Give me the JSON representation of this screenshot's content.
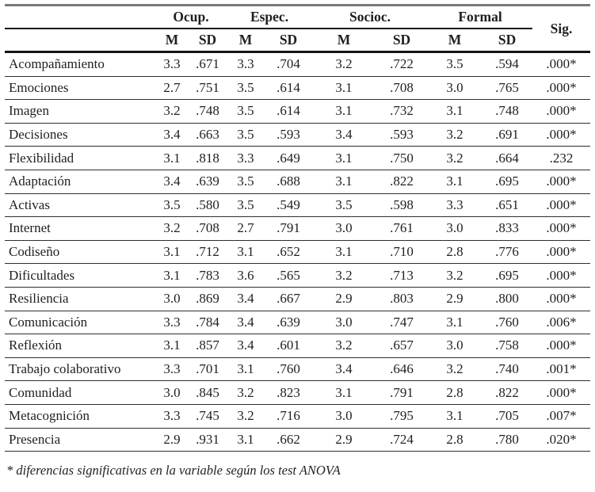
{
  "page": {
    "footnote": "* diferencias significativas en la variable según los test ANOVA"
  },
  "colors": {
    "text": "#1f1f1f",
    "rule_dark": "#161616",
    "rule_row": "#2e2e2e",
    "rule_top_gray": "#7a7a7a",
    "background": "#ffffff"
  },
  "table": {
    "groups": [
      {
        "key": "ocup",
        "label": "Ocup."
      },
      {
        "key": "espec",
        "label": "Espec."
      },
      {
        "key": "socioc",
        "label": "Socioc."
      },
      {
        "key": "formal",
        "label": "Formal"
      }
    ],
    "subheaders": [
      "M",
      "SD"
    ],
    "sig_label": "Sig.",
    "rows": [
      {
        "label": "Acompañamiento",
        "values": [
          "3.3",
          ".671",
          "3.3",
          ".704",
          "3.2",
          ".722",
          "3.5",
          ".594"
        ],
        "sig": ".000*"
      },
      {
        "label": "Emociones",
        "values": [
          "2.7",
          ".751",
          "3.5",
          ".614",
          "3.1",
          ".708",
          "3.0",
          ".765"
        ],
        "sig": ".000*"
      },
      {
        "label": "Imagen",
        "values": [
          "3.2",
          ".748",
          "3.5",
          ".614",
          "3.1",
          ".732",
          "3.1",
          ".748"
        ],
        "sig": ".000*"
      },
      {
        "label": "Decisiones",
        "values": [
          "3.4",
          ".663",
          "3.5",
          ".593",
          "3.4",
          ".593",
          "3.2",
          ".691"
        ],
        "sig": ".000*"
      },
      {
        "label": "Flexibilidad",
        "values": [
          "3.1",
          ".818",
          "3.3",
          ".649",
          "3.1",
          ".750",
          "3.2",
          ".664"
        ],
        "sig": ".232"
      },
      {
        "label": "Adaptación",
        "values": [
          "3.4",
          ".639",
          "3.5",
          ".688",
          "3.1",
          ".822",
          "3.1",
          ".695"
        ],
        "sig": ".000*"
      },
      {
        "label": "Activas",
        "values": [
          "3.5",
          ".580",
          "3.5",
          ".549",
          "3.5",
          ".598",
          "3.3",
          ".651"
        ],
        "sig": ".000*"
      },
      {
        "label": "Internet",
        "values": [
          "3.2",
          ".708",
          "2.7",
          ".791",
          "3.0",
          ".761",
          "3.0",
          ".833"
        ],
        "sig": ".000*"
      },
      {
        "label": "Codiseño",
        "values": [
          "3.1",
          ".712",
          "3.1",
          ".652",
          "3.1",
          ".710",
          "2.8",
          ".776"
        ],
        "sig": ".000*"
      },
      {
        "label": "Dificultades",
        "values": [
          "3.1",
          ".783",
          "3.6",
          ".565",
          "3.2",
          ".713",
          "3.2",
          ".695"
        ],
        "sig": ".000*"
      },
      {
        "label": "Resiliencia",
        "values": [
          "3.0",
          ".869",
          "3.4",
          ".667",
          "2.9",
          ".803",
          "2.9",
          ".800"
        ],
        "sig": ".000*"
      },
      {
        "label": "Comunicación",
        "values": [
          "3.3",
          ".784",
          "3.4",
          ".639",
          "3.0",
          ".747",
          "3.1",
          ".760"
        ],
        "sig": ".006*"
      },
      {
        "label": "Reflexión",
        "values": [
          "3.1",
          ".857",
          "3.4",
          ".601",
          "3.2",
          ".657",
          "3.0",
          ".758"
        ],
        "sig": ".000*"
      },
      {
        "label": "Trabajo colaborativo",
        "values": [
          "3.3",
          ".701",
          "3.1",
          ".760",
          "3.4",
          ".646",
          "3.2",
          ".740"
        ],
        "sig": ".001*"
      },
      {
        "label": "Comunidad",
        "values": [
          "3.0",
          ".845",
          "3.2",
          ".823",
          "3.1",
          ".791",
          "2.8",
          ".822"
        ],
        "sig": ".000*"
      },
      {
        "label": "Metacognición",
        "values": [
          "3.3",
          ".745",
          "3.2",
          ".716",
          "3.0",
          ".795",
          "3.1",
          ".705"
        ],
        "sig": ".007*"
      },
      {
        "label": "Presencia",
        "values": [
          "2.9",
          ".931",
          "3.1",
          ".662",
          "2.9",
          ".724",
          "2.8",
          ".780"
        ],
        "sig": ".020*"
      }
    ]
  }
}
